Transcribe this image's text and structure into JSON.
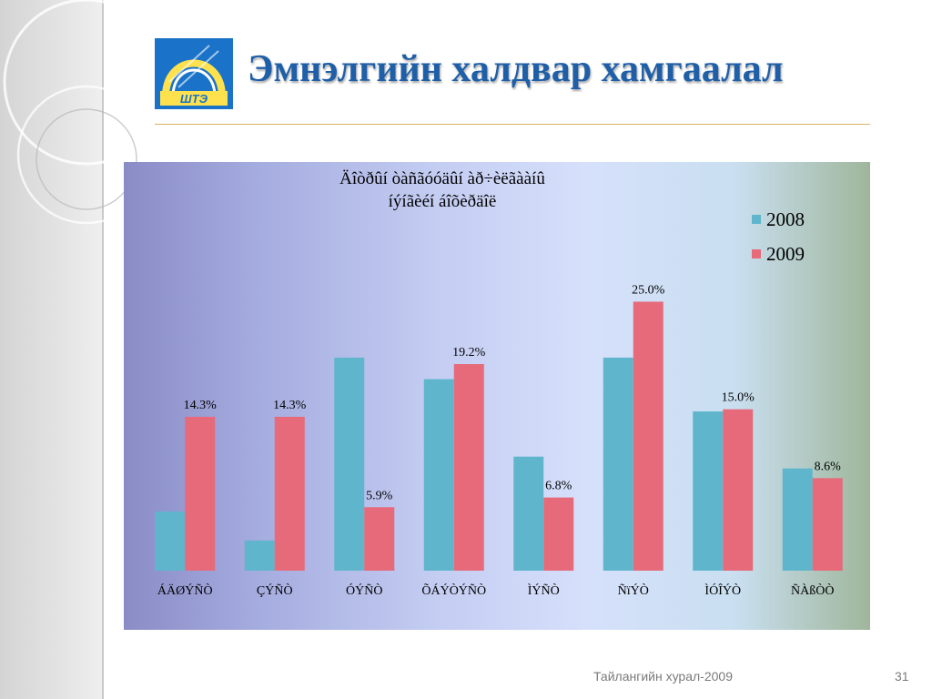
{
  "slide": {
    "title": "Эмнэлгийн халдвар хамгаалал",
    "footer": "Тайлангийн хурал-2009",
    "page_number": "31",
    "logo_text": "ШТЭ"
  },
  "colors": {
    "title": "#1f5fa8",
    "series_2008": "#5fb6cc",
    "series_2009": "#e66a7a",
    "divider": "#d9b25e"
  },
  "chart_data": {
    "type": "bar",
    "title_lines": [
      "Äîòðûí òàñãóóäûí àð÷èëãààíû",
      "íýíãèéí áîõèðäîë"
    ],
    "categories": [
      "ÁÄØÝÑÒ",
      "ÇÝÑÒ",
      "ÓÝÑÒ",
      "ÕÁÝÒÝÑÒ",
      "ÌÝÑÒ",
      "ÑïÝÒ",
      "ÌÓÎÝÒ",
      "ÑÀßÒÒ"
    ],
    "series": [
      {
        "name": "2008",
        "color": "#5fb6cc",
        "values": [
          5.5,
          2.8,
          19.8,
          17.8,
          10.6,
          19.8,
          14.8,
          9.5
        ],
        "labels": [
          "",
          "",
          "",
          "",
          "",
          "",
          "",
          ""
        ]
      },
      {
        "name": "2009",
        "color": "#e66a7a",
        "values": [
          14.3,
          14.3,
          5.9,
          19.2,
          6.8,
          25.0,
          15.0,
          8.6
        ],
        "labels": [
          "14.3%",
          "14.3%",
          "5.9%",
          "19.2%",
          "6.8%",
          "25.0%",
          "15.0%",
          "8.6%"
        ]
      }
    ],
    "ylim": [
      0,
      28
    ],
    "grid": false,
    "legend_position": "top-right",
    "xlabel": "",
    "ylabel": ""
  }
}
